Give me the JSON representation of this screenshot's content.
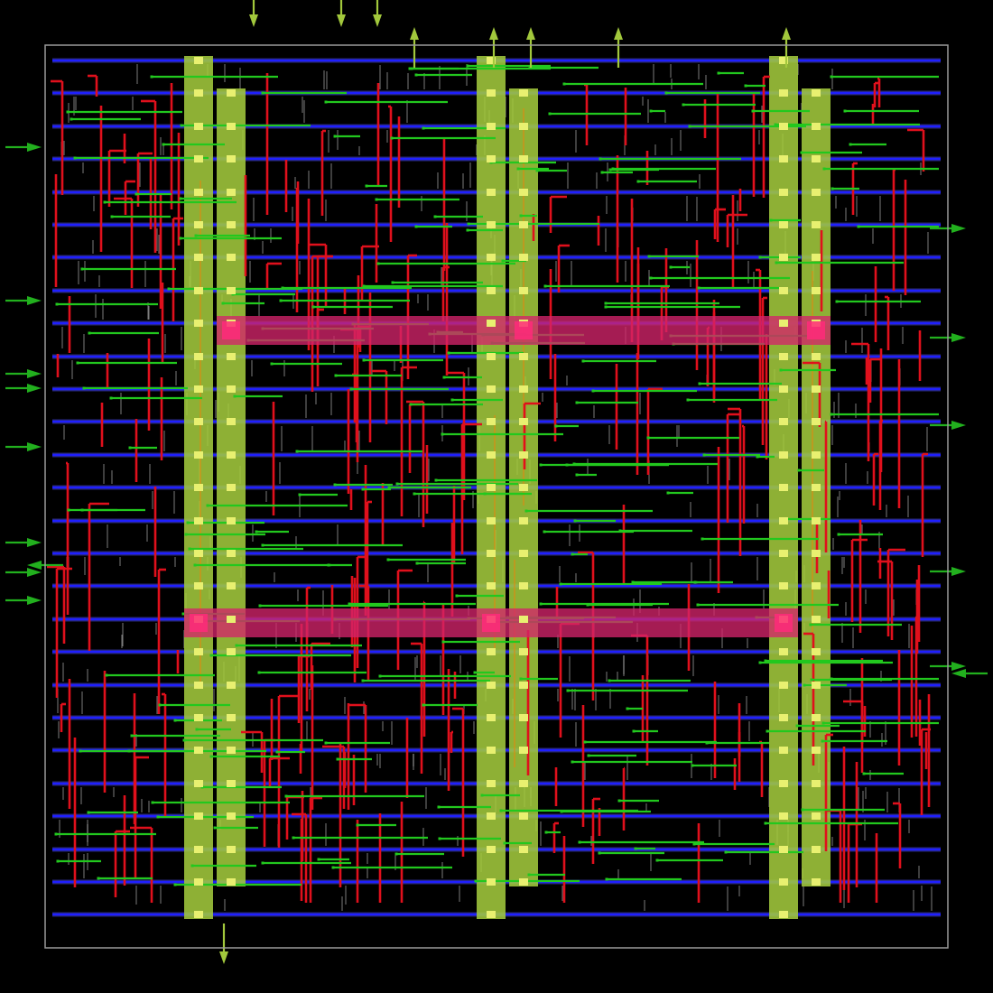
{
  "view": {
    "kind": "ic-layout-routing-view",
    "background_color": "#000000"
  },
  "colors": {
    "die_boundary": "#9a9a9a",
    "power_rails": "#1f1fff",
    "power_rail_glow": "#5a5aff",
    "vertical_power_straps": "#a2c83c",
    "strap_vias": "#e8f070",
    "horizontal_power_straps": "#d4246a",
    "strap_intersection_vias": "#ff2a7a",
    "metal_vertical_signal": "#e0101c",
    "metal_horizontal_signal": "#22c81e",
    "cell_pin_stubs": "#cfcfcf",
    "io_pin_markers": "#22b01e",
    "io_pin_markers_top": "#a2c83c",
    "orange_jogs": "#e08a10"
  },
  "legend": [],
  "pins": {
    "top_count": 8,
    "bottom_count": 1,
    "left_count": 9,
    "right_count": 6
  },
  "icons": {
    "pin_marker_shape": "triangle-arrow",
    "via_shape": "square"
  }
}
